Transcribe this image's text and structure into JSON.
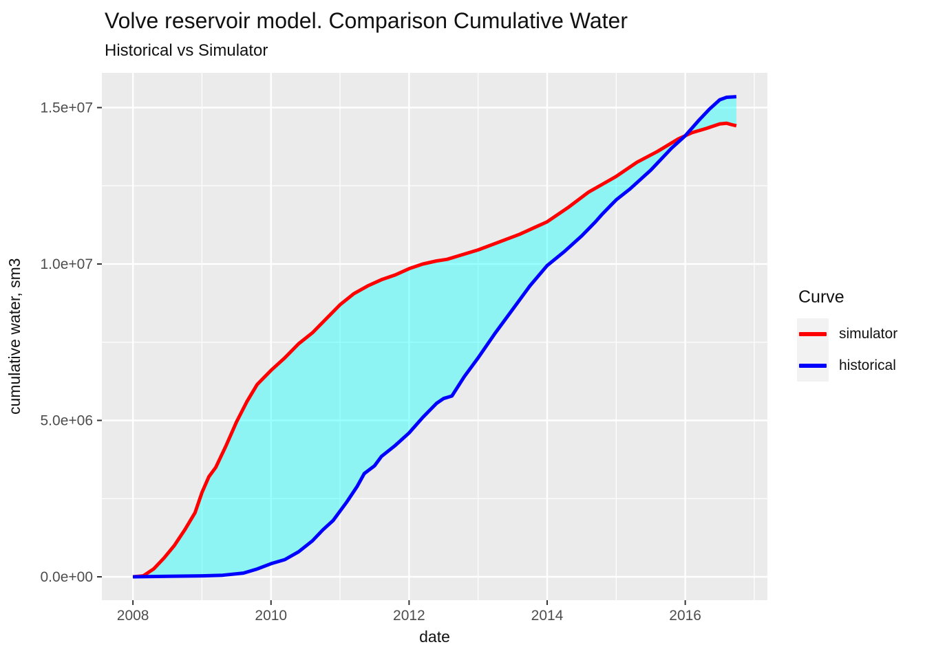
{
  "chart_data": {
    "type": "line",
    "title": "Volve reservoir model. Comparison Cumulative Water",
    "subtitle": "Historical vs Simulator",
    "xlabel": "date",
    "ylabel": "cumulative water, sm3",
    "xlim": [
      2007.55,
      2017.19
    ],
    "ylim": [
      -747000,
      16110000
    ],
    "grid": true,
    "panel_background": "#EBEBEB",
    "gridline_color": "#FFFFFF",
    "tick_color": "#333333",
    "tick_label_color": "#4D4D4D",
    "ribbon_fill": "rgba(0,255,255,0.40)",
    "x_major_ticks": [
      2008,
      2010,
      2012,
      2014,
      2016
    ],
    "x_tick_labels": [
      "2008",
      "2010",
      "2012",
      "2014",
      "2016"
    ],
    "x_minor_ticks": [
      2009,
      2011,
      2013,
      2015,
      2017
    ],
    "y_major_ticks": [
      0,
      5000000,
      10000000,
      15000000
    ],
    "y_tick_labels": [
      "0.0e+00",
      "5.0e+06",
      "1.0e+07",
      "1.5e+07"
    ],
    "y_minor_ticks": [
      2500000,
      7500000,
      12500000
    ],
    "legend": {
      "title": "Curve",
      "position": "right",
      "key_background": "#F2F2F2",
      "entries": [
        {
          "label": "simulator",
          "color": "#FF0000"
        },
        {
          "label": "historical",
          "color": "#0000FF"
        }
      ]
    },
    "series": [
      {
        "name": "simulator",
        "color": "#FF0000",
        "points": [
          [
            2008.0,
            0
          ],
          [
            2008.15,
            30000
          ],
          [
            2008.3,
            250000
          ],
          [
            2008.45,
            600000
          ],
          [
            2008.6,
            1000000
          ],
          [
            2008.75,
            1500000
          ],
          [
            2008.9,
            2050000
          ],
          [
            2009.0,
            2700000
          ],
          [
            2009.1,
            3200000
          ],
          [
            2009.2,
            3500000
          ],
          [
            2009.35,
            4200000
          ],
          [
            2009.5,
            4950000
          ],
          [
            2009.65,
            5600000
          ],
          [
            2009.8,
            6150000
          ],
          [
            2010.0,
            6600000
          ],
          [
            2010.2,
            7000000
          ],
          [
            2010.4,
            7450000
          ],
          [
            2010.6,
            7800000
          ],
          [
            2010.8,
            8250000
          ],
          [
            2011.0,
            8700000
          ],
          [
            2011.2,
            9050000
          ],
          [
            2011.4,
            9300000
          ],
          [
            2011.6,
            9500000
          ],
          [
            2011.8,
            9650000
          ],
          [
            2012.0,
            9850000
          ],
          [
            2012.2,
            10000000
          ],
          [
            2012.4,
            10100000
          ],
          [
            2012.55,
            10150000
          ],
          [
            2012.7,
            10250000
          ],
          [
            2013.0,
            10450000
          ],
          [
            2013.3,
            10700000
          ],
          [
            2013.6,
            10950000
          ],
          [
            2013.8,
            11150000
          ],
          [
            2014.0,
            11350000
          ],
          [
            2014.3,
            11800000
          ],
          [
            2014.6,
            12300000
          ],
          [
            2014.8,
            12550000
          ],
          [
            2015.0,
            12800000
          ],
          [
            2015.3,
            13250000
          ],
          [
            2015.6,
            13600000
          ],
          [
            2015.9,
            14000000
          ],
          [
            2016.1,
            14200000
          ],
          [
            2016.3,
            14330000
          ],
          [
            2016.5,
            14480000
          ],
          [
            2016.6,
            14500000
          ],
          [
            2016.68,
            14450000
          ],
          [
            2016.74,
            14420000
          ]
        ]
      },
      {
        "name": "historical",
        "color": "#0000FF",
        "points": [
          [
            2008.0,
            0
          ],
          [
            2008.6,
            20000
          ],
          [
            2009.0,
            30000
          ],
          [
            2009.3,
            50000
          ],
          [
            2009.6,
            120000
          ],
          [
            2009.8,
            250000
          ],
          [
            2010.0,
            420000
          ],
          [
            2010.2,
            550000
          ],
          [
            2010.4,
            800000
          ],
          [
            2010.6,
            1150000
          ],
          [
            2010.75,
            1500000
          ],
          [
            2010.9,
            1800000
          ],
          [
            2011.1,
            2400000
          ],
          [
            2011.25,
            2900000
          ],
          [
            2011.35,
            3300000
          ],
          [
            2011.5,
            3550000
          ],
          [
            2011.6,
            3850000
          ],
          [
            2011.8,
            4200000
          ],
          [
            2012.0,
            4600000
          ],
          [
            2012.2,
            5100000
          ],
          [
            2012.4,
            5550000
          ],
          [
            2012.5,
            5700000
          ],
          [
            2012.62,
            5780000
          ],
          [
            2012.8,
            6400000
          ],
          [
            2013.0,
            7000000
          ],
          [
            2013.25,
            7800000
          ],
          [
            2013.5,
            8550000
          ],
          [
            2013.75,
            9300000
          ],
          [
            2014.0,
            9950000
          ],
          [
            2014.25,
            10400000
          ],
          [
            2014.5,
            10900000
          ],
          [
            2014.7,
            11350000
          ],
          [
            2014.8,
            11600000
          ],
          [
            2015.0,
            12050000
          ],
          [
            2015.2,
            12400000
          ],
          [
            2015.5,
            13000000
          ],
          [
            2015.8,
            13700000
          ],
          [
            2016.0,
            14100000
          ],
          [
            2016.2,
            14600000
          ],
          [
            2016.35,
            14950000
          ],
          [
            2016.5,
            15250000
          ],
          [
            2016.6,
            15330000
          ],
          [
            2016.74,
            15350000
          ]
        ]
      }
    ]
  }
}
